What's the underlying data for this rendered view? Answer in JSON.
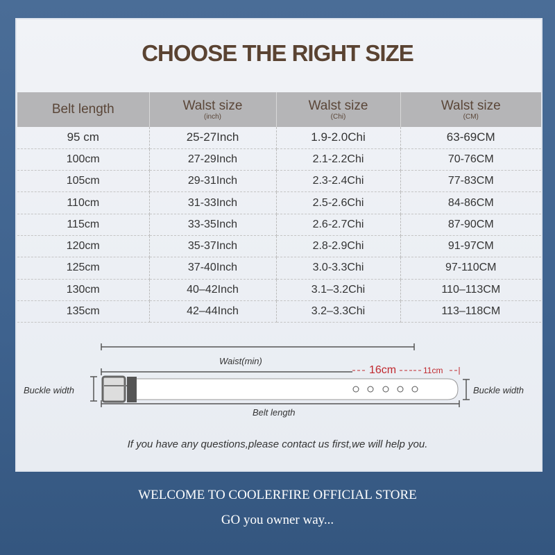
{
  "title": "CHOOSE THE RIGHT SIZE",
  "table": {
    "headers": [
      {
        "label": "Belt length",
        "sub": ""
      },
      {
        "label": "Walst size",
        "sub": "(inch)"
      },
      {
        "label": "Walst size",
        "sub": "(Chi)"
      },
      {
        "label": "Walst size",
        "sub": "(CM)"
      }
    ],
    "rows": [
      [
        "95 cm",
        "25-27Inch",
        "1.9-2.0Chi",
        "63-69CM"
      ],
      [
        "100cm",
        "27-29Inch",
        "2.1-2.2Chi",
        "70-76CM"
      ],
      [
        "105cm",
        "29-31Inch",
        "2.3-2.4Chi",
        "77-83CM"
      ],
      [
        "110cm",
        "31-33Inch",
        "2.5-2.6Chi",
        "84-86CM"
      ],
      [
        "115cm",
        "33-35Inch",
        "2.6-2.7Chi",
        "87-90CM"
      ],
      [
        "120cm",
        "35-37Inch",
        "2.8-2.9Chi",
        "91-97CM"
      ],
      [
        "125cm",
        "37-40Inch",
        "3.0-3.3Chi",
        "97-110CM"
      ],
      [
        "130cm",
        "40–42Inch",
        "3.1–3.2Chi",
        "110–113CM"
      ],
      [
        "135cm",
        "42–44Inch",
        "3.2–3.3Chi",
        "113–118CM"
      ]
    ]
  },
  "diagram": {
    "waist": "Waist(min)",
    "hole_span": "16cm",
    "tip_span": "11cm",
    "buckle_width_left": "Buckle width",
    "buckle_width_right": "Buckle width",
    "belt_length": "Belt length",
    "accent": "#c0282d"
  },
  "note": "If you have any questions,please contact us first,we will help you.",
  "footer": {
    "line1": "WELCOME TO COOLERFIRE OFFICIAL STORE",
    "line2": "GO  you owner way..."
  }
}
